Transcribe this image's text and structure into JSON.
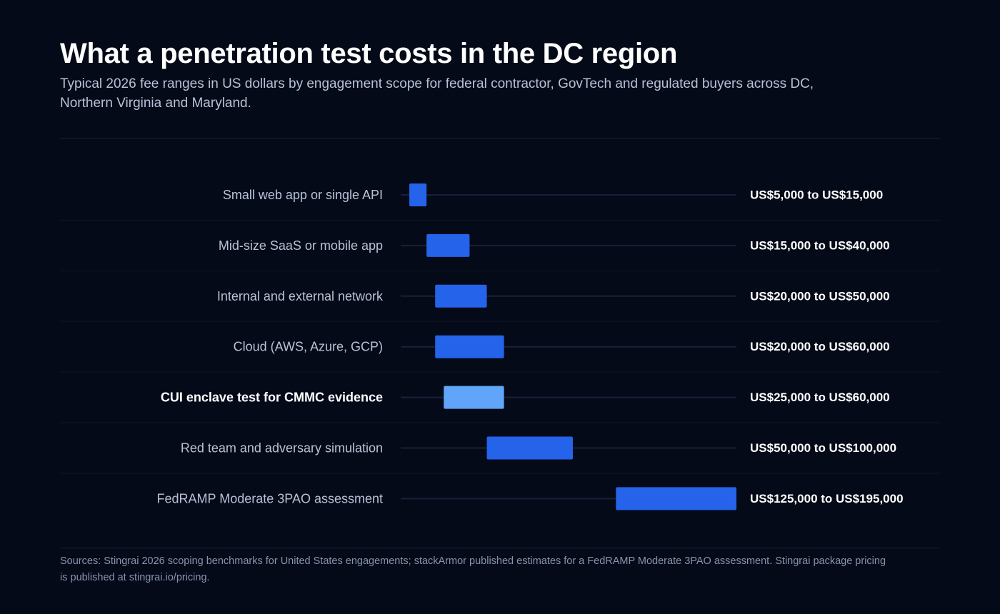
{
  "header": {
    "title": "What a penetration test costs in the DC region",
    "subtitle": "Typical 2026 fee ranges in US dollars by engagement scope for federal contractor, GovTech and regulated buyers across DC, Northern Virginia and Maryland."
  },
  "footer": {
    "sources": "Sources: Stingrai 2026 scoping benchmarks for United States engagements; stackArmor published estimates for a FedRAMP Moderate 3PAO assessment. Stingrai package pricing is published at stingrai.io/pricing."
  },
  "colors": {
    "background": "#050a18",
    "bar": "#2563eb",
    "bar_highlight": "#60a5fa",
    "track": "#18213a",
    "label": "#b7c2d6",
    "label_highlight": "#ffffff",
    "value_label": "#ffffff"
  },
  "chart_data": {
    "type": "range-bar",
    "orientation": "horizontal",
    "unit": "USD",
    "xlim": [
      0,
      195000
    ],
    "grid": false,
    "legend": "none",
    "categories": [
      "Small web app or single API",
      "Mid-size SaaS or mobile app",
      "Internal and external network",
      "Cloud (AWS, Azure, GCP)",
      "CUI enclave test for CMMC evidence",
      "Red team and adversary simulation",
      "FedRAMP Moderate 3PAO assessment"
    ],
    "ranges": [
      {
        "low": 5000,
        "high": 15000,
        "label": "US$5,000 to US$15,000",
        "highlight": false
      },
      {
        "low": 15000,
        "high": 40000,
        "label": "US$15,000 to US$40,000",
        "highlight": false
      },
      {
        "low": 20000,
        "high": 50000,
        "label": "US$20,000 to US$50,000",
        "highlight": false
      },
      {
        "low": 20000,
        "high": 60000,
        "label": "US$20,000 to US$60,000",
        "highlight": false
      },
      {
        "low": 25000,
        "high": 60000,
        "label": "US$25,000 to US$60,000",
        "highlight": true
      },
      {
        "low": 50000,
        "high": 100000,
        "label": "US$50,000 to US$100,000",
        "highlight": false
      },
      {
        "low": 125000,
        "high": 195000,
        "label": "US$125,000 to US$195,000",
        "highlight": false
      }
    ]
  }
}
